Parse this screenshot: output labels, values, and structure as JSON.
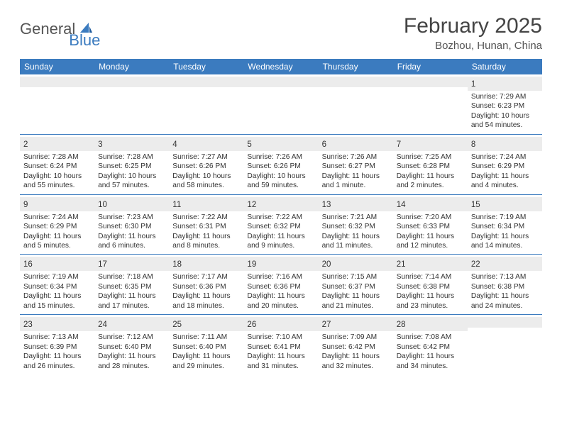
{
  "logo": {
    "text1": "General",
    "text2": "Blue"
  },
  "title": "February 2025",
  "location": "Bozhou, Hunan, China",
  "header_bg": "#3b7bbf",
  "weekdays": [
    "Sunday",
    "Monday",
    "Tuesday",
    "Wednesday",
    "Thursday",
    "Friday",
    "Saturday"
  ],
  "weeks": [
    [
      null,
      null,
      null,
      null,
      null,
      null,
      {
        "n": "1",
        "sr": "7:29 AM",
        "ss": "6:23 PM",
        "dl": "10 hours and 54 minutes."
      }
    ],
    [
      {
        "n": "2",
        "sr": "7:28 AM",
        "ss": "6:24 PM",
        "dl": "10 hours and 55 minutes."
      },
      {
        "n": "3",
        "sr": "7:28 AM",
        "ss": "6:25 PM",
        "dl": "10 hours and 57 minutes."
      },
      {
        "n": "4",
        "sr": "7:27 AM",
        "ss": "6:26 PM",
        "dl": "10 hours and 58 minutes."
      },
      {
        "n": "5",
        "sr": "7:26 AM",
        "ss": "6:26 PM",
        "dl": "10 hours and 59 minutes."
      },
      {
        "n": "6",
        "sr": "7:26 AM",
        "ss": "6:27 PM",
        "dl": "11 hours and 1 minute."
      },
      {
        "n": "7",
        "sr": "7:25 AM",
        "ss": "6:28 PM",
        "dl": "11 hours and 2 minutes."
      },
      {
        "n": "8",
        "sr": "7:24 AM",
        "ss": "6:29 PM",
        "dl": "11 hours and 4 minutes."
      }
    ],
    [
      {
        "n": "9",
        "sr": "7:24 AM",
        "ss": "6:29 PM",
        "dl": "11 hours and 5 minutes."
      },
      {
        "n": "10",
        "sr": "7:23 AM",
        "ss": "6:30 PM",
        "dl": "11 hours and 6 minutes."
      },
      {
        "n": "11",
        "sr": "7:22 AM",
        "ss": "6:31 PM",
        "dl": "11 hours and 8 minutes."
      },
      {
        "n": "12",
        "sr": "7:22 AM",
        "ss": "6:32 PM",
        "dl": "11 hours and 9 minutes."
      },
      {
        "n": "13",
        "sr": "7:21 AM",
        "ss": "6:32 PM",
        "dl": "11 hours and 11 minutes."
      },
      {
        "n": "14",
        "sr": "7:20 AM",
        "ss": "6:33 PM",
        "dl": "11 hours and 12 minutes."
      },
      {
        "n": "15",
        "sr": "7:19 AM",
        "ss": "6:34 PM",
        "dl": "11 hours and 14 minutes."
      }
    ],
    [
      {
        "n": "16",
        "sr": "7:19 AM",
        "ss": "6:34 PM",
        "dl": "11 hours and 15 minutes."
      },
      {
        "n": "17",
        "sr": "7:18 AM",
        "ss": "6:35 PM",
        "dl": "11 hours and 17 minutes."
      },
      {
        "n": "18",
        "sr": "7:17 AM",
        "ss": "6:36 PM",
        "dl": "11 hours and 18 minutes."
      },
      {
        "n": "19",
        "sr": "7:16 AM",
        "ss": "6:36 PM",
        "dl": "11 hours and 20 minutes."
      },
      {
        "n": "20",
        "sr": "7:15 AM",
        "ss": "6:37 PM",
        "dl": "11 hours and 21 minutes."
      },
      {
        "n": "21",
        "sr": "7:14 AM",
        "ss": "6:38 PM",
        "dl": "11 hours and 23 minutes."
      },
      {
        "n": "22",
        "sr": "7:13 AM",
        "ss": "6:38 PM",
        "dl": "11 hours and 24 minutes."
      }
    ],
    [
      {
        "n": "23",
        "sr": "7:13 AM",
        "ss": "6:39 PM",
        "dl": "11 hours and 26 minutes."
      },
      {
        "n": "24",
        "sr": "7:12 AM",
        "ss": "6:40 PM",
        "dl": "11 hours and 28 minutes."
      },
      {
        "n": "25",
        "sr": "7:11 AM",
        "ss": "6:40 PM",
        "dl": "11 hours and 29 minutes."
      },
      {
        "n": "26",
        "sr": "7:10 AM",
        "ss": "6:41 PM",
        "dl": "11 hours and 31 minutes."
      },
      {
        "n": "27",
        "sr": "7:09 AM",
        "ss": "6:42 PM",
        "dl": "11 hours and 32 minutes."
      },
      {
        "n": "28",
        "sr": "7:08 AM",
        "ss": "6:42 PM",
        "dl": "11 hours and 34 minutes."
      },
      null
    ]
  ],
  "labels": {
    "sunrise": "Sunrise: ",
    "sunset": "Sunset: ",
    "daylight": "Daylight: "
  }
}
